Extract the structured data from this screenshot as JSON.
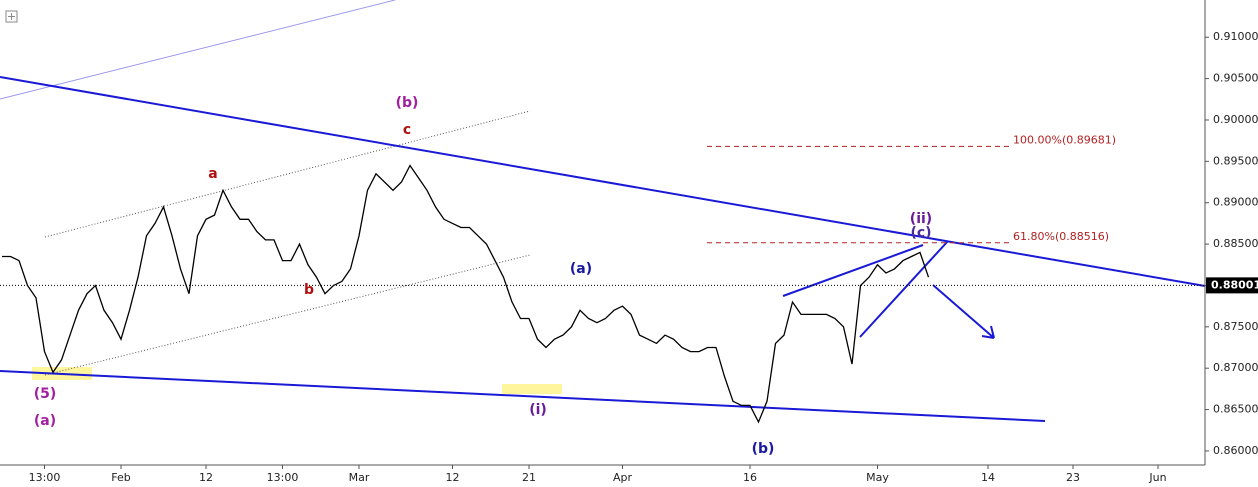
{
  "chart_data": {
    "type": "line",
    "categories": [
      null,
      null,
      null,
      null,
      null,
      "13:00",
      null,
      null,
      null,
      null,
      null,
      null,
      null,
      null,
      "Feb",
      null,
      null,
      null,
      null,
      null,
      null,
      null,
      null,
      null,
      "12",
      null,
      null,
      null,
      null,
      null,
      null,
      null,
      null,
      "13:00",
      null,
      null,
      null,
      null,
      null,
      null,
      null,
      null,
      "Mar",
      null,
      null,
      null,
      null,
      null,
      null,
      null,
      null,
      null,
      null,
      "12",
      null,
      null,
      null,
      null,
      null,
      null,
      null,
      null,
      "21",
      null,
      null,
      null,
      null,
      null,
      null,
      null,
      null,
      null,
      null,
      "Apr",
      null,
      null,
      null,
      null,
      null,
      null,
      null,
      null,
      null,
      null,
      null,
      null,
      null,
      null,
      "16",
      null,
      null,
      null,
      null,
      null,
      null,
      null,
      null,
      null,
      null,
      null,
      null,
      null,
      null,
      "May",
      null,
      null,
      null,
      null,
      null,
      null,
      null,
      null,
      null,
      null,
      null,
      null,
      "14",
      null,
      null,
      null,
      null,
      null,
      null,
      null,
      null,
      null,
      "23",
      null,
      null,
      null,
      null,
      null,
      null,
      null,
      null,
      null,
      "Jun",
      null,
      null,
      null,
      null,
      null
    ],
    "series": [
      {
        "color": "#000000",
        "values": [
          0.8835,
          0.8835,
          0.883,
          0.88,
          0.8785,
          0.872,
          0.8695,
          0.871,
          0.874,
          0.877,
          0.879,
          0.88,
          0.877,
          0.8755,
          0.8735,
          0.877,
          0.881,
          0.886,
          0.8875,
          0.8895,
          0.886,
          0.882,
          0.879,
          0.886,
          0.888,
          0.8885,
          0.8915,
          0.8895,
          0.888,
          0.888,
          0.8865,
          0.8855,
          0.8855,
          0.883,
          0.883,
          0.885,
          0.8825,
          0.881,
          0.879,
          0.88,
          0.8805,
          0.882,
          0.886,
          0.8915,
          0.8935,
          0.8925,
          0.8915,
          0.8925,
          0.8945,
          0.893,
          0.8915,
          0.8895,
          0.888,
          0.8875,
          0.887,
          0.887,
          0.886,
          0.885,
          0.883,
          0.881,
          0.878,
          0.876,
          0.876,
          0.8735,
          0.8725,
          0.8735,
          0.874,
          0.875,
          0.877,
          0.876,
          0.8755,
          0.876,
          0.877,
          0.8775,
          0.8765,
          0.874,
          0.8735,
          0.873,
          0.874,
          0.8735,
          0.8725,
          0.872,
          0.872,
          0.8725,
          0.8725,
          0.869,
          0.866,
          0.8655,
          0.8655,
          0.8635,
          0.866,
          0.873,
          0.874,
          0.878,
          0.8765,
          0.8765,
          0.8765,
          0.8765,
          0.876,
          0.875,
          0.8705,
          0.88,
          0.881,
          0.8825,
          0.8815,
          0.882,
          0.883,
          0.8835,
          0.884,
          0.881,
          null,
          null,
          null,
          null,
          null,
          null,
          null,
          null,
          null,
          null,
          null,
          null,
          null,
          null,
          null,
          null,
          null,
          null,
          null,
          null,
          null,
          null,
          null,
          null,
          null,
          null,
          null,
          null,
          null,
          null,
          null,
          null
        ]
      }
    ],
    "ylim": [
      0.8583,
      0.9145
    ],
    "yticks": [
      {
        "value": 0.86,
        "label": "0.86000"
      },
      {
        "value": 0.865,
        "label": "0.86500"
      },
      {
        "value": 0.87,
        "label": "0.87000"
      },
      {
        "value": 0.875,
        "label": "0.87500"
      },
      {
        "value": 0.88,
        "label": "0.88000"
      },
      {
        "value": 0.885,
        "label": "0.88500"
      },
      {
        "value": 0.89,
        "label": "0.89000"
      },
      {
        "value": 0.895,
        "label": "0.89500"
      },
      {
        "value": 0.9,
        "label": "0.90000"
      },
      {
        "value": 0.905,
        "label": "0.90500"
      },
      {
        "value": 0.91,
        "label": "0.91000"
      }
    ],
    "last_price": 0.88001,
    "fib_levels": [
      {
        "value": 0.89681,
        "label": "100.00%(0.89681)",
        "color": "#b22222"
      },
      {
        "value": 0.88516,
        "label": "61.80%(0.88516)",
        "color": "#b22222"
      }
    ],
    "annotations": [
      {
        "text": "(b)",
        "color": "#a020a0"
      },
      {
        "text": "c",
        "color": "#b01010"
      },
      {
        "text": "a",
        "color": "#b01010"
      },
      {
        "text": "b",
        "color": "#b01010"
      },
      {
        "text": "(5)",
        "color": "#a020a0"
      },
      {
        "text": "(a)",
        "color": "#a020a0"
      },
      {
        "text": "(i)",
        "color": "#6a1b9a"
      },
      {
        "text": "(a)",
        "color": "#1a1aa0"
      },
      {
        "text": "(b)",
        "color": "#1a1aa0"
      },
      {
        "text": "(ii)",
        "color": "#6a1b9a"
      },
      {
        "text": "(c)",
        "color": "#4b2aa0"
      }
    ]
  }
}
